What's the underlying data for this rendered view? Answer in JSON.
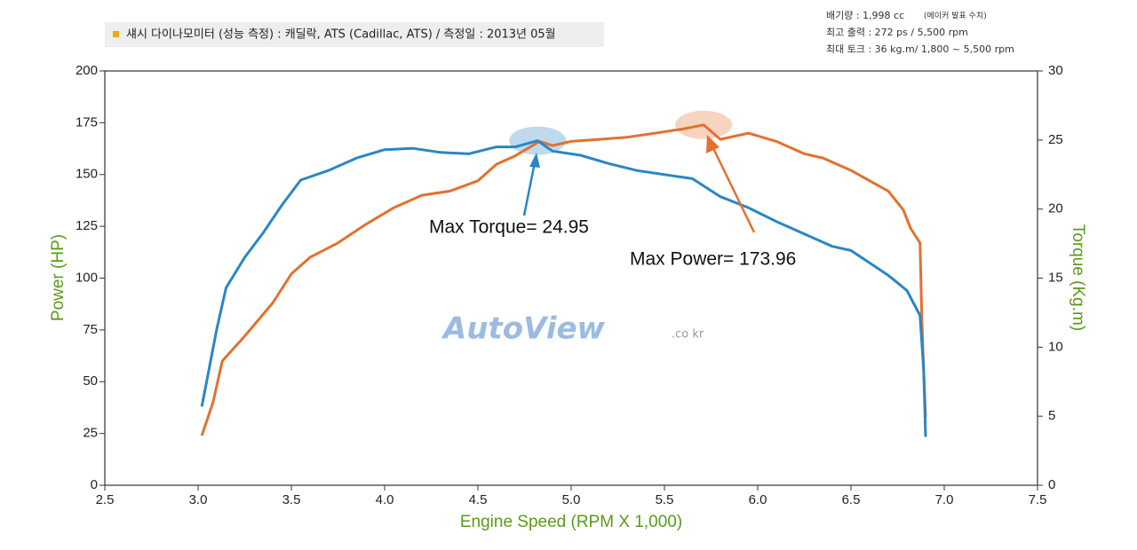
{
  "chart_data": {
    "type": "line",
    "header": "섀시 다이나모미터 (성능 측정)  :  캐딜락, ATS (Cadillac, ATS) / 측정일 : 2013년 05월",
    "specs": [
      "배기량 : 1,998 cc",
      "(메이커 발표 수치)",
      "최고 출력 : 272 ps / 5,500 rpm",
      "최대 토크 : 36 kg.m/ 1,800 ~ 5,500 rpm"
    ],
    "xlabel": "Engine Speed (RPM X 1,000)",
    "ylabel": "Power (HP)",
    "y2label": "Torque (Kg.m)",
    "watermark": "AutoView",
    "watermark_suffix": ".co kr",
    "annotations": [
      "Max Torque= 24.95",
      "Max Power= 173.96"
    ],
    "xlim": [
      2.5,
      7.5
    ],
    "xticks": [
      2.5,
      {
        "value": 3,
        "label": "3.0"
      },
      3.5,
      {
        "value": 4,
        "label": "4.0"
      },
      4.5,
      {
        "value": 5,
        "label": "5.0"
      },
      5.5,
      {
        "value": 6,
        "label": "6.0"
      },
      6.5,
      {
        "value": 7,
        "label": "7.0"
      },
      7.5
    ],
    "ylim": [
      0,
      200
    ],
    "yticks": [
      0,
      25,
      50,
      75,
      100,
      125,
      150,
      175,
      200
    ],
    "y2lim": [
      0,
      30
    ],
    "y2ticks": [
      0,
      5,
      10,
      15,
      20,
      25,
      30
    ],
    "series": [
      {
        "color": "#e2712f",
        "axis": "y",
        "x": [
          3.02,
          3.08,
          3.13,
          3.25,
          3.4,
          3.5,
          3.6,
          3.75,
          3.9,
          4.05,
          4.2,
          4.35,
          4.5,
          4.6,
          4.7,
          4.83,
          4.9,
          5.0,
          5.15,
          5.3,
          5.45,
          5.6,
          5.71,
          5.8,
          5.95,
          6.1,
          6.25,
          6.35,
          6.5,
          6.6,
          6.7,
          6.78,
          6.82,
          6.87,
          6.88,
          6.89,
          6.9
        ],
        "values": [
          24,
          40,
          60,
          72,
          88,
          102,
          110,
          117,
          126,
          134,
          140,
          142,
          147,
          155,
          159,
          166,
          164,
          166,
          167,
          168,
          170,
          172,
          173.96,
          167,
          170,
          166,
          160,
          158,
          152,
          147,
          142,
          133,
          124,
          117,
          80,
          55,
          33
        ]
      },
      {
        "color": "#2a86c4",
        "axis": "y2",
        "x": [
          3.02,
          3.1,
          3.15,
          3.25,
          3.35,
          3.45,
          3.55,
          3.7,
          3.85,
          4.0,
          4.15,
          4.3,
          4.45,
          4.6,
          4.7,
          4.82,
          4.9,
          5.05,
          5.2,
          5.35,
          5.5,
          5.65,
          5.8,
          5.95,
          6.1,
          6.25,
          6.4,
          6.5,
          6.6,
          6.7,
          6.8,
          6.87,
          6.89,
          6.9
        ],
        "values": [
          5.7,
          11.3,
          14.3,
          16.5,
          18.3,
          20.3,
          22.1,
          22.8,
          23.7,
          24.3,
          24.4,
          24.1,
          24.0,
          24.5,
          24.5,
          24.95,
          24.2,
          23.9,
          23.3,
          22.8,
          22.5,
          22.2,
          20.9,
          20.1,
          19.1,
          18.2,
          17.3,
          17.0,
          16.1,
          15.2,
          14.1,
          12.3,
          8.3,
          3.5
        ]
      }
    ]
  }
}
